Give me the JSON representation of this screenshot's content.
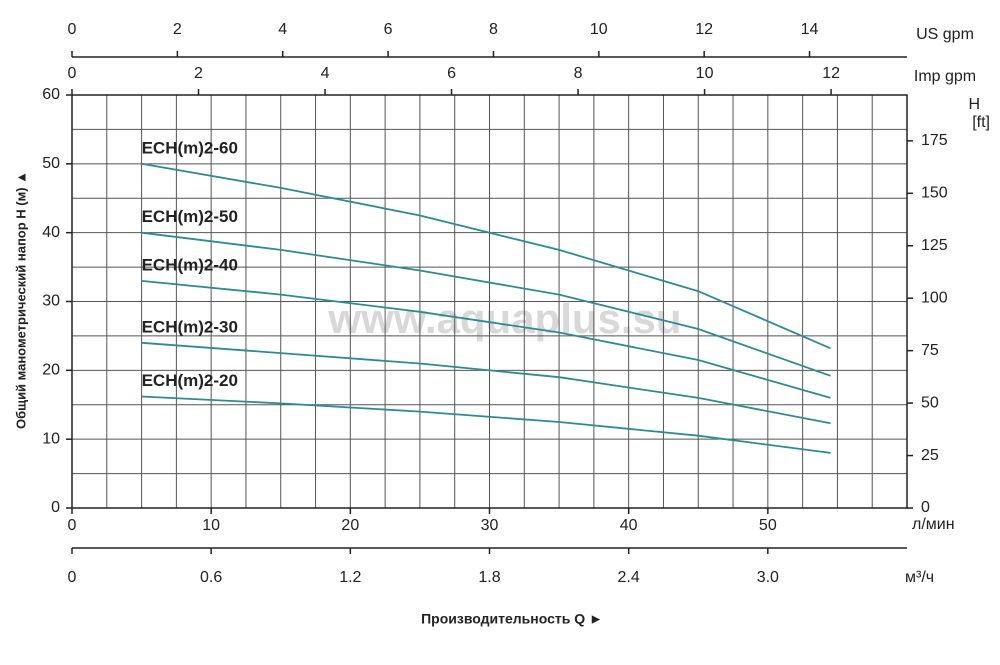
{
  "chart_data": {
    "type": "line",
    "xlabel": "Производительность Q ►",
    "ylabel": "Общий манометрический напор H (м) ▲",
    "x_unit": "л/мин",
    "watermark": "www.aquaplus.su",
    "xlim": [
      0,
      60
    ],
    "xticks": [
      0,
      10,
      20,
      30,
      40,
      50
    ],
    "ylim": [
      0,
      60
    ],
    "yticks": [
      0,
      10,
      20,
      30,
      40,
      50,
      60
    ],
    "y2label": [
      "H",
      "[ft]"
    ],
    "y2lim": [
      0,
      196.85
    ],
    "y2ticks": [
      0,
      25,
      50,
      75,
      100,
      125,
      150,
      175
    ],
    "grid": true,
    "xgrid": [
      0,
      2.5,
      5,
      7.5,
      10,
      12.5,
      15,
      17.5,
      20,
      22.5,
      25,
      27.5,
      30,
      32.5,
      35,
      37.5,
      40,
      42.5,
      45,
      47.5,
      50,
      52.5,
      55,
      57.5,
      60
    ],
    "ygrid": [
      0,
      5,
      10,
      15,
      20,
      25,
      30,
      35,
      40,
      45,
      50,
      55,
      60
    ],
    "extra_x_axes": [
      {
        "label": "US gpm",
        "position": "top",
        "xlim": [
          0,
          15.85
        ],
        "xticks": [
          0,
          2,
          4,
          6,
          8,
          10,
          12,
          14
        ]
      },
      {
        "label": "Imp gpm",
        "position": "top",
        "xlim": [
          0,
          13.2
        ],
        "xticks": [
          0,
          2,
          4,
          6,
          8,
          10,
          12
        ]
      },
      {
        "label": "м³/ч",
        "position": "bottom",
        "xlim": [
          0,
          3.6
        ],
        "xticks": [
          0,
          0.6,
          1.2,
          1.8,
          2.4,
          {
            "value": 3,
            "label": "3.0"
          }
        ]
      }
    ],
    "x": [
      5,
      15,
      25,
      35,
      45,
      54.5
    ],
    "series": [
      {
        "name": "ECH(m)2-60",
        "color": "#2b8c98",
        "values": [
          50,
          46.5,
          42.5,
          37.5,
          31.5,
          23.2
        ]
      },
      {
        "name": "ECH(m)2-50",
        "color": "#2b8c98",
        "values": [
          40,
          37.5,
          34.5,
          31,
          26,
          19.2
        ]
      },
      {
        "name": "ECH(m)2-40",
        "color": "#2b8c98",
        "values": [
          33,
          31,
          28.5,
          25.5,
          21.5,
          16
        ]
      },
      {
        "name": "ECH(m)2-30",
        "color": "#2b8c98",
        "values": [
          24,
          22.5,
          21,
          19,
          16,
          12.3
        ]
      },
      {
        "name": "ECH(m)2-20",
        "color": "#2b8c98",
        "values": [
          16.2,
          15.2,
          14,
          12.5,
          10.5,
          8
        ]
      }
    ]
  }
}
